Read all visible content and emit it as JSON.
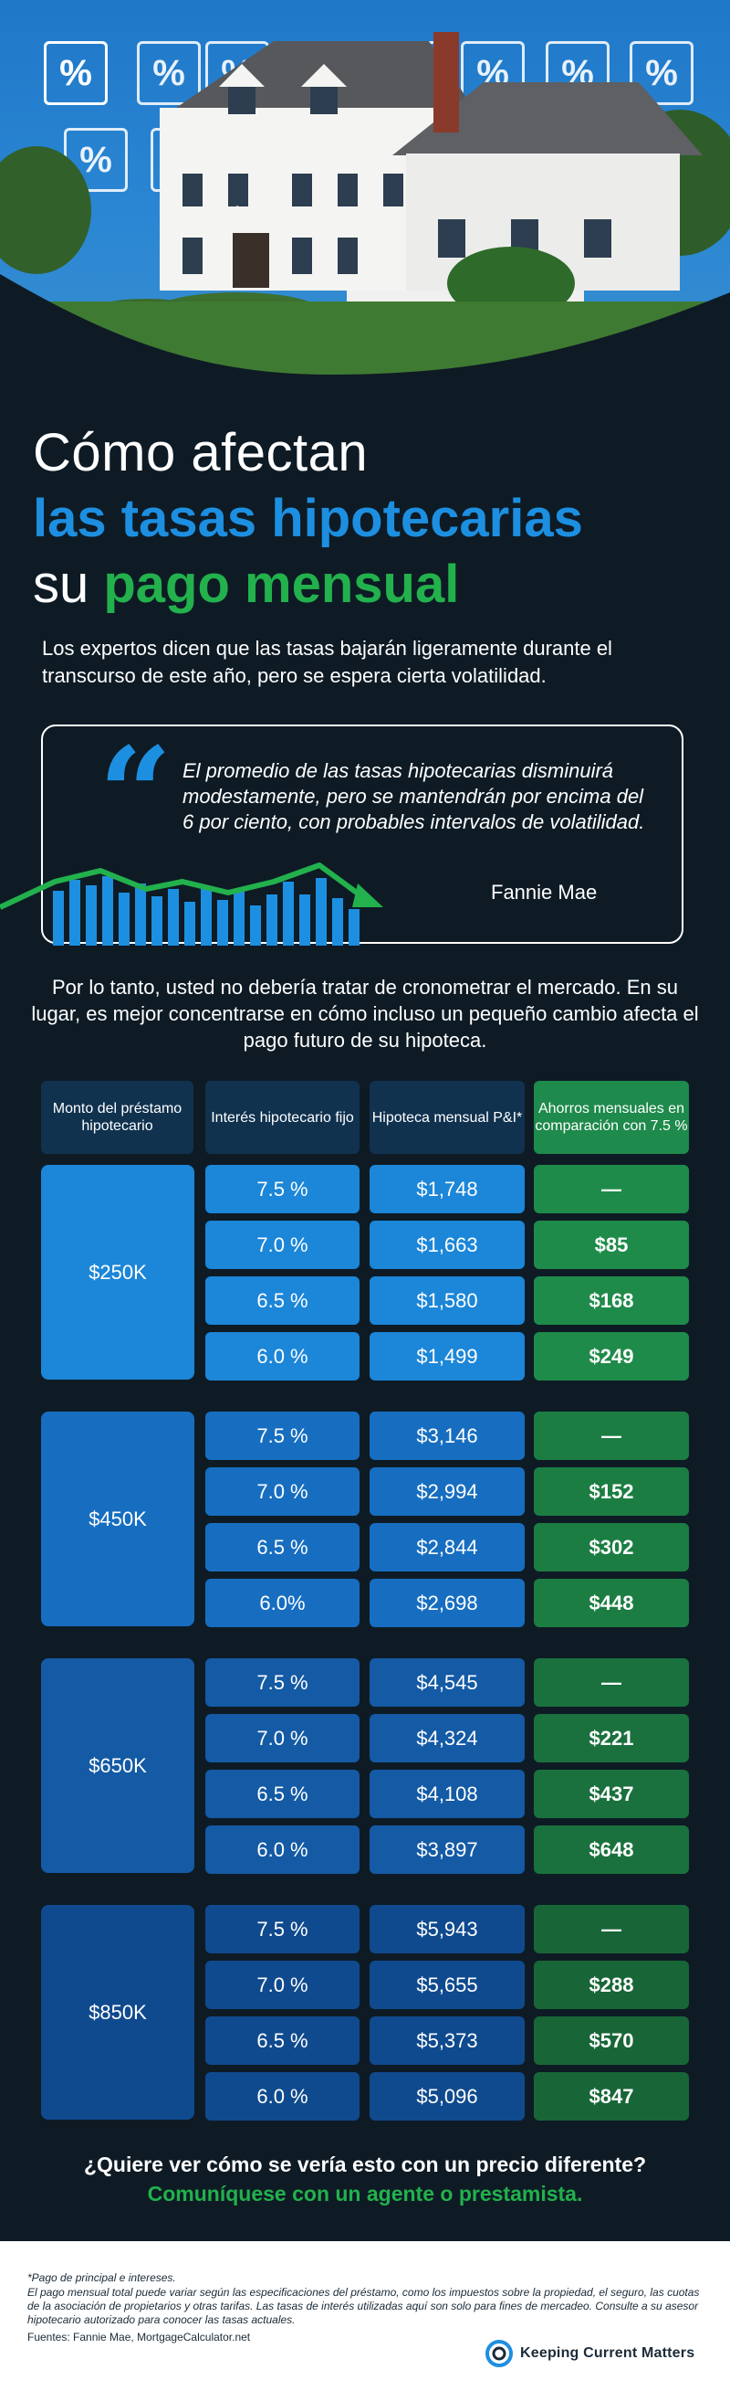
{
  "title": {
    "line1": "Cómo afectan",
    "line2": "las tasas hipotecarias",
    "line3_prefix": "su ",
    "line3_highlight": "pago mensual"
  },
  "intro": "Los expertos dicen que las tasas bajarán ligeramente durante el transcurso de este año, pero se espera cierta volatilidad.",
  "quote": {
    "mark": "“",
    "text": "El promedio de las tasas hipotecarias disminuirá modestamente, pero se mantendrán por encima del 6 por ciento, con probables intervalos de volatilidad.",
    "author": "Fannie Mae"
  },
  "lead": "Por lo tanto, usted no debería tratar de cronometrar el mercado. En su lugar, es mejor concentrarse en cómo incluso un pequeño cambio afecta el pago futuro de su hipoteca.",
  "headers": {
    "col1": "Monto del préstamo hipotecario",
    "col2": "Interés hipotecario fijo",
    "col3": "Hipoteca mensual P&I*",
    "col4": "Ahorros mensuales en comparación con 7.5 %"
  },
  "groups": [
    {
      "amount": "$250K",
      "rows": [
        {
          "rate": "7.5 %",
          "payment": "$1,748",
          "savings": "—"
        },
        {
          "rate": "7.0 %",
          "payment": "$1,663",
          "savings": "$85"
        },
        {
          "rate": "6.5 %",
          "payment": "$1,580",
          "savings": "$168"
        },
        {
          "rate": "6.0 %",
          "payment": "$1,499",
          "savings": "$249"
        }
      ]
    },
    {
      "amount": "$450K",
      "rows": [
        {
          "rate": "7.5 %",
          "payment": "$3,146",
          "savings": "—"
        },
        {
          "rate": "7.0 %",
          "payment": "$2,994",
          "savings": "$152"
        },
        {
          "rate": "6.5 %",
          "payment": "$2,844",
          "savings": "$302"
        },
        {
          "rate": "6.0%",
          "payment": "$2,698",
          "savings": "$448"
        }
      ]
    },
    {
      "amount": "$650K",
      "rows": [
        {
          "rate": "7.5 %",
          "payment": "$4,545",
          "savings": "—"
        },
        {
          "rate": "7.0 %",
          "payment": "$4,324",
          "savings": "$221"
        },
        {
          "rate": "6.5 %",
          "payment": "$4,108",
          "savings": "$437"
        },
        {
          "rate": "6.0 %",
          "payment": "$3,897",
          "savings": "$648"
        }
      ]
    },
    {
      "amount": "$850K",
      "rows": [
        {
          "rate": "7.5 %",
          "payment": "$5,943",
          "savings": "—"
        },
        {
          "rate": "7.0 %",
          "payment": "$5,655",
          "savings": "$288"
        },
        {
          "rate": "6.5 %",
          "payment": "$5,373",
          "savings": "$570"
        },
        {
          "rate": "6.0 %",
          "payment": "$5,096",
          "savings": "$847"
        }
      ]
    }
  ],
  "cta": {
    "line1": "¿Quiere ver cómo se vería esto con un precio diferente?",
    "line2": "Comuníquese con un agente o prestamista."
  },
  "footer": {
    "footnote1": "*Pago de principal e intereses.",
    "footnote2": "El pago mensual total puede variar según las especificaciones del préstamo, como los impuestos sobre la propiedad, el seguro, las cuotas de la asociación de propietarios y otras tarifas. Las tasas de interés utilizadas aquí son solo para fines de mercadeo. Consulte a su asesor hipotecario autorizado para conocer las tasas actuales.",
    "sources": "Fuentes: Fannie Mae, MortgageCalculator.net",
    "logo_text": "Keeping Current Matters"
  },
  "hero": {
    "tile_symbol": "%",
    "tile_count": 12
  },
  "colors": {
    "background": "#0e1b25",
    "accent_blue": "#1d8fe1",
    "accent_green": "#22b14c",
    "header_navy": "#10324f"
  }
}
